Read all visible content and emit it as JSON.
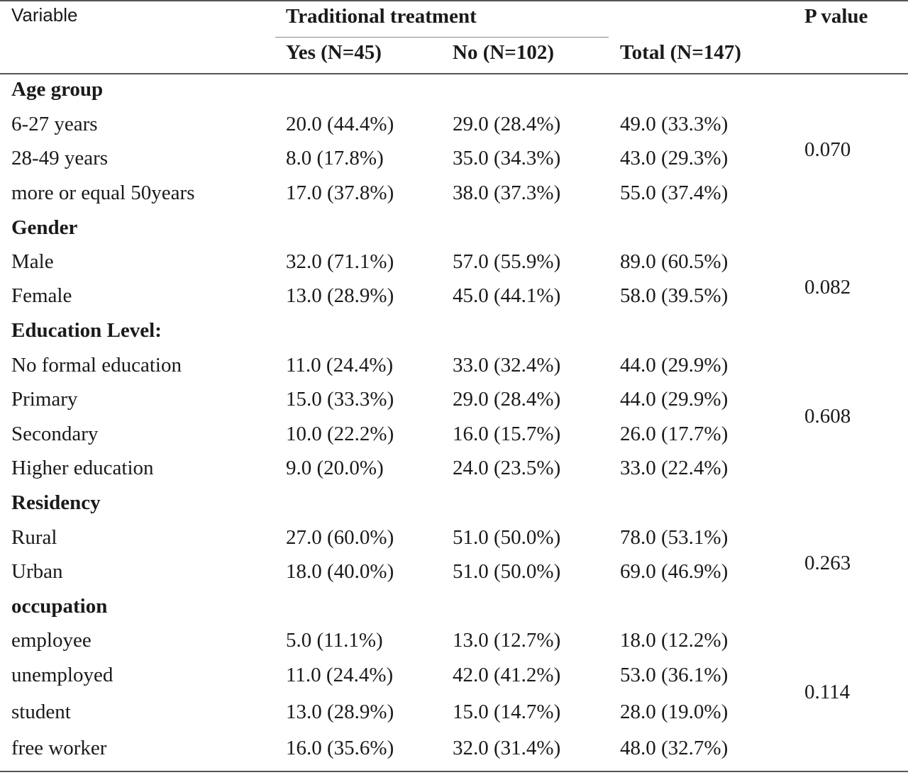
{
  "header": {
    "variable": "Variable",
    "group_title": "Traditional  treatment",
    "yes": "Yes (N=45)",
    "no": "No (N=102)",
    "total": "Total (N=147)",
    "p": "P value"
  },
  "sections": [
    {
      "title": "Age group",
      "p": "0.070",
      "rows": [
        {
          "label": "6-27 years",
          "yes": "20.0 (44.4%)",
          "no": "29.0 (28.4%)",
          "total": "49.0 (33.3%)"
        },
        {
          "label": "28-49 years",
          "yes": "8.0 (17.8%)",
          "no": "35.0 (34.3%)",
          "total": "43.0 (29.3%)"
        },
        {
          "label": "more or equal 50years",
          "yes": "17.0 (37.8%)",
          "no": "38.0 (37.3%)",
          "total": "55.0 (37.4%)"
        }
      ]
    },
    {
      "title": "Gender",
      "p": "0.082",
      "rows": [
        {
          "label": "Male",
          "yes": "32.0 (71.1%)",
          "no": "57.0 (55.9%)",
          "total": "89.0 (60.5%)"
        },
        {
          "label": "Female",
          "yes": "13.0 (28.9%)",
          "no": "45.0 (44.1%)",
          "total": "58.0 (39.5%)"
        }
      ]
    },
    {
      "title": "Education Level:",
      "p": "0.608",
      "rows": [
        {
          "label": "No formal education",
          "yes": "11.0 (24.4%)",
          "no": "33.0 (32.4%)",
          "total": "44.0 (29.9%)"
        },
        {
          "label": "Primary",
          "yes": "15.0 (33.3%)",
          "no": "29.0 (28.4%)",
          "total": "44.0 (29.9%)"
        },
        {
          "label": "Secondary",
          "yes": "10.0 (22.2%)",
          "no": "16.0 (15.7%)",
          "total": "26.0 (17.7%)"
        },
        {
          "label": "Higher education",
          "yes": "9.0 (20.0%)",
          "no": "24.0 (23.5%)",
          "total": "33.0 (22.4%)"
        }
      ]
    },
    {
      "title": "Residency",
      "p": "0.263",
      "rows": [
        {
          "label": "Rural",
          "yes": "27.0 (60.0%)",
          "no": "51.0 (50.0%)",
          "total": "78.0 (53.1%)"
        },
        {
          "label": "Urban",
          "yes": "18.0 (40.0%)",
          "no": "51.0 (50.0%)",
          "total": "69.0 (46.9%)"
        }
      ]
    },
    {
      "title": "occupation",
      "p": "0.114",
      "rows": [
        {
          "label": "employee",
          "yes": "5.0 (11.1%)",
          "no": "13.0 (12.7%)",
          "total": "18.0 (12.2%)"
        },
        {
          "label": "unemployed",
          "yes": "11.0 (24.4%)",
          "no": "42.0 (41.2%)",
          "total": "53.0 (36.1%)"
        },
        {
          "label": "student",
          "yes": "13.0 (28.9%)",
          "no": "15.0 (14.7%)",
          "total": "28.0 (19.0%)"
        },
        {
          "label": "free worker",
          "yes": "16.0 (35.6%)",
          "no": "32.0 (31.4%)",
          "total": "48.0 (32.7%)"
        }
      ]
    }
  ]
}
